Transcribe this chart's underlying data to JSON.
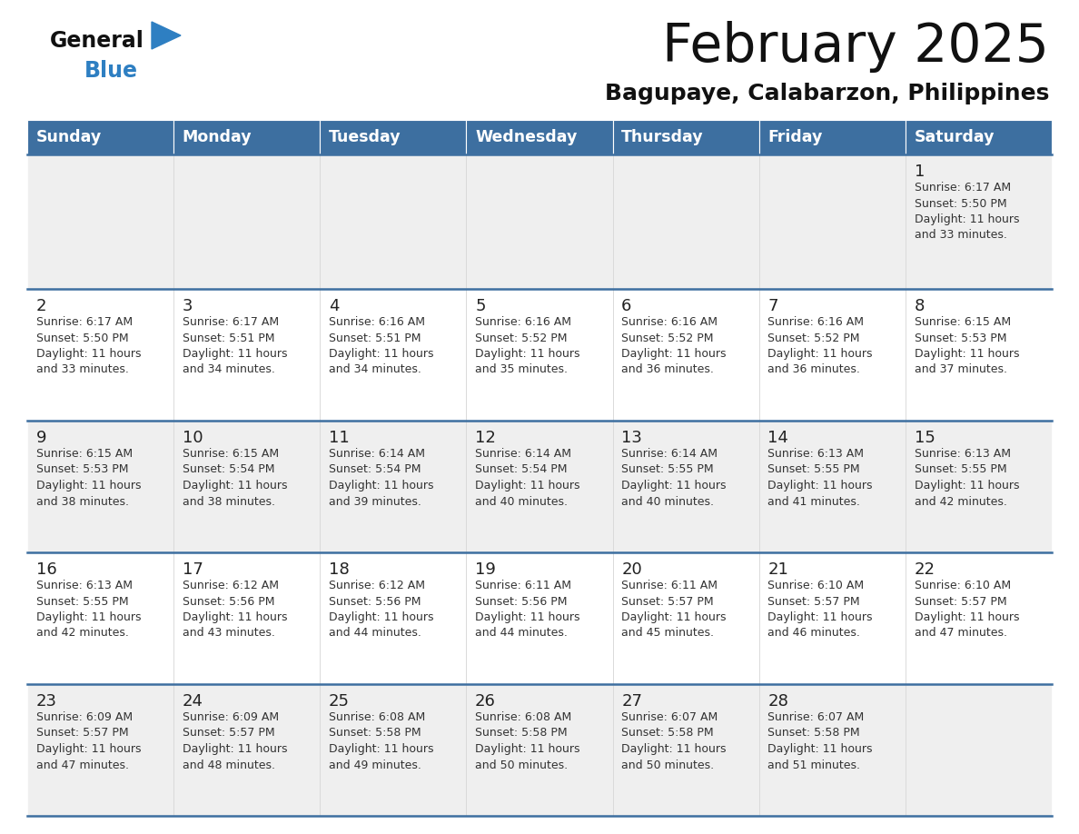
{
  "title": "February 2025",
  "subtitle": "Bagupaye, Calabarzon, Philippines",
  "days_of_week": [
    "Sunday",
    "Monday",
    "Tuesday",
    "Wednesday",
    "Thursday",
    "Friday",
    "Saturday"
  ],
  "header_bg": "#3d6fa0",
  "header_text": "#ffffff",
  "cell_bg_odd": "#efefef",
  "cell_bg_even": "#ffffff",
  "row_line_color": "#3d6fa0",
  "day_num_color": "#222222",
  "info_text_color": "#333333",
  "title_color": "#111111",
  "subtitle_color": "#111111",
  "logo_general_color": "#111111",
  "logo_blue_color": "#2e7fc2",
  "weeks": [
    [
      {
        "day": 0,
        "data": null
      },
      {
        "day": 0,
        "data": null
      },
      {
        "day": 0,
        "data": null
      },
      {
        "day": 0,
        "data": null
      },
      {
        "day": 0,
        "data": null
      },
      {
        "day": 0,
        "data": null
      },
      {
        "day": 1,
        "data": {
          "sunrise": "6:17 AM",
          "sunset": "5:50 PM",
          "daylight": "11 hours and 33 minutes."
        }
      }
    ],
    [
      {
        "day": 2,
        "data": {
          "sunrise": "6:17 AM",
          "sunset": "5:50 PM",
          "daylight": "11 hours and 33 minutes."
        }
      },
      {
        "day": 3,
        "data": {
          "sunrise": "6:17 AM",
          "sunset": "5:51 PM",
          "daylight": "11 hours and 34 minutes."
        }
      },
      {
        "day": 4,
        "data": {
          "sunrise": "6:16 AM",
          "sunset": "5:51 PM",
          "daylight": "11 hours and 34 minutes."
        }
      },
      {
        "day": 5,
        "data": {
          "sunrise": "6:16 AM",
          "sunset": "5:52 PM",
          "daylight": "11 hours and 35 minutes."
        }
      },
      {
        "day": 6,
        "data": {
          "sunrise": "6:16 AM",
          "sunset": "5:52 PM",
          "daylight": "11 hours and 36 minutes."
        }
      },
      {
        "day": 7,
        "data": {
          "sunrise": "6:16 AM",
          "sunset": "5:52 PM",
          "daylight": "11 hours and 36 minutes."
        }
      },
      {
        "day": 8,
        "data": {
          "sunrise": "6:15 AM",
          "sunset": "5:53 PM",
          "daylight": "11 hours and 37 minutes."
        }
      }
    ],
    [
      {
        "day": 9,
        "data": {
          "sunrise": "6:15 AM",
          "sunset": "5:53 PM",
          "daylight": "11 hours and 38 minutes."
        }
      },
      {
        "day": 10,
        "data": {
          "sunrise": "6:15 AM",
          "sunset": "5:54 PM",
          "daylight": "11 hours and 38 minutes."
        }
      },
      {
        "day": 11,
        "data": {
          "sunrise": "6:14 AM",
          "sunset": "5:54 PM",
          "daylight": "11 hours and 39 minutes."
        }
      },
      {
        "day": 12,
        "data": {
          "sunrise": "6:14 AM",
          "sunset": "5:54 PM",
          "daylight": "11 hours and 40 minutes."
        }
      },
      {
        "day": 13,
        "data": {
          "sunrise": "6:14 AM",
          "sunset": "5:55 PM",
          "daylight": "11 hours and 40 minutes."
        }
      },
      {
        "day": 14,
        "data": {
          "sunrise": "6:13 AM",
          "sunset": "5:55 PM",
          "daylight": "11 hours and 41 minutes."
        }
      },
      {
        "day": 15,
        "data": {
          "sunrise": "6:13 AM",
          "sunset": "5:55 PM",
          "daylight": "11 hours and 42 minutes."
        }
      }
    ],
    [
      {
        "day": 16,
        "data": {
          "sunrise": "6:13 AM",
          "sunset": "5:55 PM",
          "daylight": "11 hours and 42 minutes."
        }
      },
      {
        "day": 17,
        "data": {
          "sunrise": "6:12 AM",
          "sunset": "5:56 PM",
          "daylight": "11 hours and 43 minutes."
        }
      },
      {
        "day": 18,
        "data": {
          "sunrise": "6:12 AM",
          "sunset": "5:56 PM",
          "daylight": "11 hours and 44 minutes."
        }
      },
      {
        "day": 19,
        "data": {
          "sunrise": "6:11 AM",
          "sunset": "5:56 PM",
          "daylight": "11 hours and 44 minutes."
        }
      },
      {
        "day": 20,
        "data": {
          "sunrise": "6:11 AM",
          "sunset": "5:57 PM",
          "daylight": "11 hours and 45 minutes."
        }
      },
      {
        "day": 21,
        "data": {
          "sunrise": "6:10 AM",
          "sunset": "5:57 PM",
          "daylight": "11 hours and 46 minutes."
        }
      },
      {
        "day": 22,
        "data": {
          "sunrise": "6:10 AM",
          "sunset": "5:57 PM",
          "daylight": "11 hours and 47 minutes."
        }
      }
    ],
    [
      {
        "day": 23,
        "data": {
          "sunrise": "6:09 AM",
          "sunset": "5:57 PM",
          "daylight": "11 hours and 47 minutes."
        }
      },
      {
        "day": 24,
        "data": {
          "sunrise": "6:09 AM",
          "sunset": "5:57 PM",
          "daylight": "11 hours and 48 minutes."
        }
      },
      {
        "day": 25,
        "data": {
          "sunrise": "6:08 AM",
          "sunset": "5:58 PM",
          "daylight": "11 hours and 49 minutes."
        }
      },
      {
        "day": 26,
        "data": {
          "sunrise": "6:08 AM",
          "sunset": "5:58 PM",
          "daylight": "11 hours and 50 minutes."
        }
      },
      {
        "day": 27,
        "data": {
          "sunrise": "6:07 AM",
          "sunset": "5:58 PM",
          "daylight": "11 hours and 50 minutes."
        }
      },
      {
        "day": 28,
        "data": {
          "sunrise": "6:07 AM",
          "sunset": "5:58 PM",
          "daylight": "11 hours and 51 minutes."
        }
      },
      {
        "day": 0,
        "data": null
      }
    ]
  ]
}
